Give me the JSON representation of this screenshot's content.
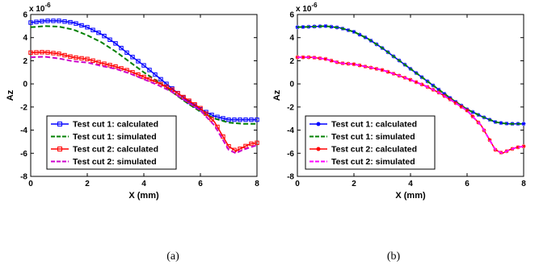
{
  "captions": [
    "(a)",
    "(b)"
  ],
  "chart_data": [
    {
      "type": "line",
      "panel": "a",
      "xlabel": "X (mm)",
      "ylabel": "Az",
      "y_multiplier": "x 10^-6",
      "xlim": [
        0,
        8
      ],
      "ylim": [
        -8,
        6
      ],
      "xticks": [
        0,
        2,
        4,
        6,
        8
      ],
      "yticks": [
        -8,
        -6,
        -4,
        -2,
        0,
        2,
        4,
        6
      ],
      "grid": false,
      "legend_position": "lower-left",
      "x": [
        0,
        0.5,
        1,
        1.5,
        2,
        2.5,
        3,
        3.5,
        4,
        4.5,
        5,
        5.5,
        6,
        6.5,
        7,
        7.25,
        7.5,
        7.75,
        8
      ],
      "series": [
        {
          "name": "Test cut 1: calculated",
          "color": "#0000ff",
          "style": "solid-square",
          "values": [
            5.3,
            5.45,
            5.45,
            5.3,
            4.9,
            4.3,
            3.5,
            2.5,
            1.6,
            0.6,
            -0.4,
            -1.4,
            -2.2,
            -2.8,
            -3.1,
            -3.1,
            -3.1,
            -3.1,
            -3.1
          ]
        },
        {
          "name": "Test cut 1: simulated",
          "color": "#008000",
          "style": "dashed",
          "values": [
            4.9,
            5.0,
            4.95,
            4.7,
            4.2,
            3.6,
            2.8,
            1.9,
            1.0,
            0.2,
            -0.7,
            -1.6,
            -2.4,
            -3.0,
            -3.35,
            -3.4,
            -3.45,
            -3.45,
            -3.45
          ]
        },
        {
          "name": "Test cut 2: calculated",
          "color": "#ff0000",
          "style": "solid-square",
          "values": [
            2.7,
            2.75,
            2.6,
            2.3,
            2.15,
            1.8,
            1.5,
            1.1,
            0.6,
            0.1,
            -0.5,
            -1.3,
            -2.1,
            -3.3,
            -5.4,
            -5.8,
            -5.5,
            -5.2,
            -5.1
          ]
        },
        {
          "name": "Test cut 2: simulated",
          "color": "#cc00cc",
          "style": "dashed",
          "values": [
            2.3,
            2.35,
            2.2,
            1.95,
            1.85,
            1.55,
            1.3,
            0.9,
            0.4,
            -0.1,
            -0.7,
            -1.5,
            -2.3,
            -3.6,
            -5.7,
            -6.0,
            -5.7,
            -5.5,
            -5.3
          ]
        }
      ]
    },
    {
      "type": "line",
      "panel": "b",
      "xlabel": "X (mm)",
      "ylabel": "Az",
      "y_multiplier": "x 10^-6",
      "xlim": [
        0,
        8
      ],
      "ylim": [
        -8,
        6
      ],
      "xticks": [
        0,
        2,
        4,
        6,
        8
      ],
      "yticks": [
        -8,
        -6,
        -4,
        -2,
        0,
        2,
        4,
        6
      ],
      "grid": false,
      "legend_position": "lower-left",
      "x": [
        0,
        0.5,
        1,
        1.5,
        2,
        2.5,
        3,
        3.5,
        4,
        4.5,
        5,
        5.5,
        6,
        6.5,
        7,
        7.25,
        7.5,
        7.75,
        8
      ],
      "series": [
        {
          "name": "Test cut 1: calculated",
          "color": "#0000ff",
          "style": "solid-star",
          "values": [
            4.9,
            4.95,
            5.0,
            4.85,
            4.5,
            3.9,
            3.1,
            2.2,
            1.3,
            0.4,
            -0.5,
            -1.4,
            -2.2,
            -2.8,
            -3.3,
            -3.4,
            -3.45,
            -3.45,
            -3.45
          ]
        },
        {
          "name": "Test cut 1: simulated",
          "color": "#008000",
          "style": "dashed",
          "values": [
            4.9,
            4.95,
            5.0,
            4.85,
            4.5,
            3.9,
            3.1,
            2.2,
            1.3,
            0.4,
            -0.5,
            -1.4,
            -2.2,
            -2.8,
            -3.3,
            -3.4,
            -3.45,
            -3.45,
            -3.45
          ]
        },
        {
          "name": "Test cut 2: calculated",
          "color": "#ff0000",
          "style": "solid-star",
          "values": [
            2.3,
            2.3,
            2.15,
            1.8,
            1.7,
            1.45,
            1.2,
            0.8,
            0.35,
            -0.15,
            -0.75,
            -1.5,
            -2.3,
            -3.6,
            -5.7,
            -6.0,
            -5.7,
            -5.5,
            -5.4
          ]
        },
        {
          "name": "Test cut 2: simulated",
          "color": "#ff00ff",
          "style": "dashed",
          "values": [
            2.3,
            2.3,
            2.15,
            1.8,
            1.7,
            1.45,
            1.2,
            0.8,
            0.35,
            -0.15,
            -0.75,
            -1.5,
            -2.3,
            -3.6,
            -5.7,
            -6.0,
            -5.7,
            -5.5,
            -5.4
          ]
        }
      ]
    }
  ]
}
